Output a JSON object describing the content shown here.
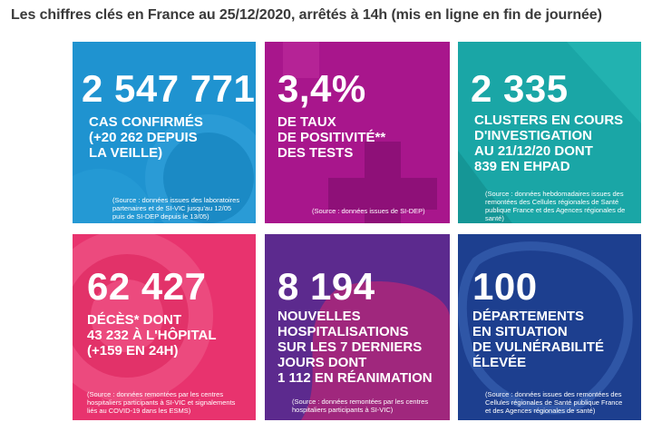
{
  "page_title": "Les chiffres clés en France au 25/12/2020, arrêtés à 14h (mis en ligne en fin de journée)",
  "colors": {
    "card1": "#1f93d0",
    "card2": "#a8168c",
    "card3": "#1aa6a6",
    "card4": "#e8336e",
    "card5": "#5c2a8e",
    "card6": "#1d3f8f"
  },
  "cards": [
    {
      "value": "2 547 771",
      "label": "CAS CONFIRMÉS\n(+20 262 DEPUIS\nLA VEILLE)",
      "source": "(Source : données issues des laboratoires\npartenaires et de SI-VIC jusqu'au 12/05\npuis de SI-DEP depuis le 13/05)"
    },
    {
      "value": "3,4%",
      "label": "DE TAUX\nDE POSITIVITÉ**\nDES TESTS",
      "source": "(Source : données issues de SI-DEP)"
    },
    {
      "value": "2 335",
      "label": "CLUSTERS EN COURS\nD'INVESTIGATION\nAU 21/12/20 DONT\n839 EN EHPAD",
      "source": "(Source : données hebdomadaires issues des\nremontées des Cellules régionales de Santé\npublique France et des Agences régionales de\nsanté)"
    },
    {
      "value": "62 427",
      "label": "DÉCÈS* DONT\n43 232 À L'HÔPITAL\n(+159 EN 24H)",
      "source": "(Source : données remontées par les centres\nhospitaliers participants à SI-VIC et signalements\nliés au COVID-19 dans les ESMS)"
    },
    {
      "value": "8 194",
      "label": "NOUVELLES\nHOSPITALISATIONS\nSUR LES 7 DERNIERS\nJOURS DONT\n1 112 EN RÉANIMATION",
      "source": "(Source : données remontées par les centres\nhospitaliers participants à SI-VIC)"
    },
    {
      "value": "100",
      "label": "DÉPARTEMENTS\nEN SITUATION\nDE VULNÉRABILITÉ\nÉLEVÉE",
      "source": "(Source : données issues des remontées des\nCellules régionales de Santé publique France\net des Agences régionales de santé)"
    }
  ]
}
